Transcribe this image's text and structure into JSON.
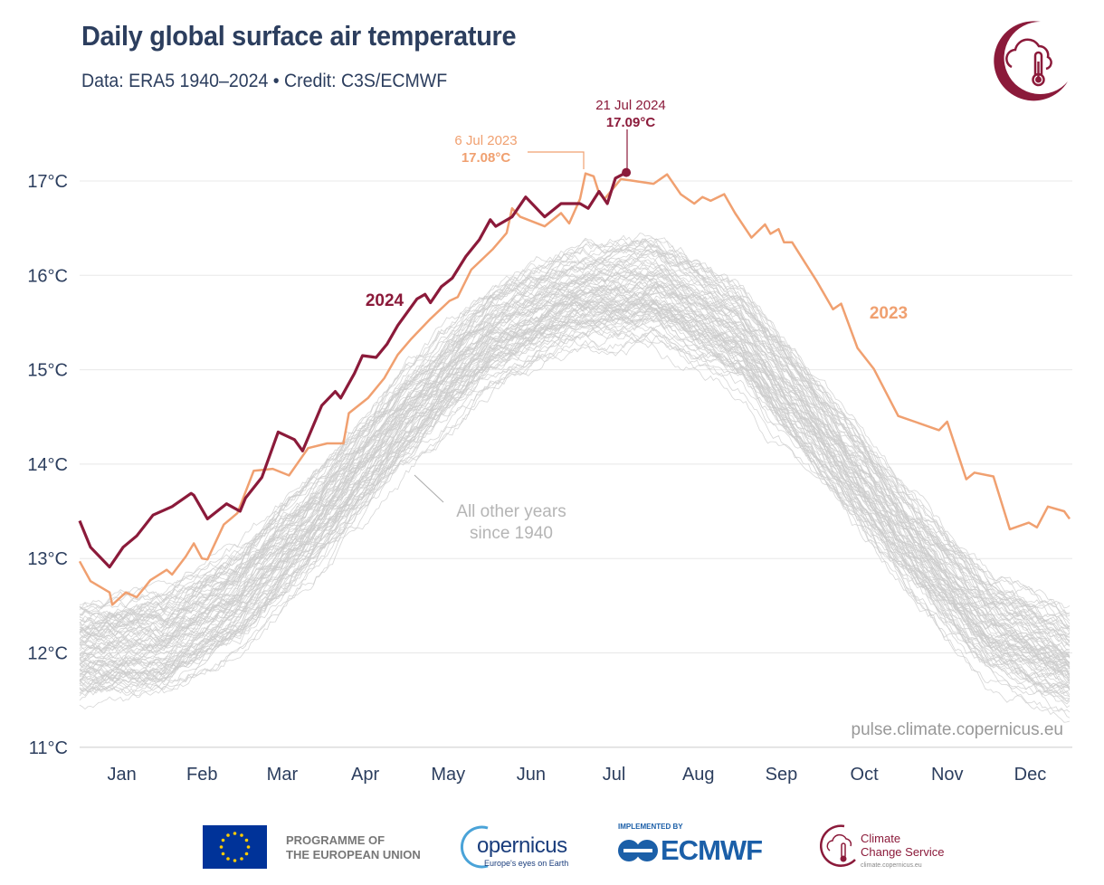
{
  "header": {
    "title": "Daily global surface air temperature",
    "subtitle": "Data: ERA5 1940–2024 • Credit: C3S/ECMWF"
  },
  "logo_icon": "climate-cloud-thermometer-icon",
  "watermark": "pulse.climate.copernicus.eu",
  "colors": {
    "y2024": "#8b1a3a",
    "y2023": "#f0a070",
    "other": "#cccccc",
    "text": "#2c3e5e",
    "grid": "#e8e8e8"
  },
  "chart_data": {
    "type": "line",
    "title": "Daily global surface air temperature",
    "xlabel": "",
    "ylabel": "",
    "x_tick_labels": [
      "Jan",
      "Feb",
      "Mar",
      "Apr",
      "May",
      "Jun",
      "Jul",
      "Aug",
      "Sep",
      "Oct",
      "Nov",
      "Dec"
    ],
    "y_tick_labels": [
      "11°C",
      "12°C",
      "13°C",
      "14°C",
      "15°C",
      "16°C",
      "17°C"
    ],
    "y_ticks": [
      11,
      12,
      13,
      14,
      15,
      16,
      17
    ],
    "ylim": [
      11,
      17.2
    ],
    "grid": true,
    "series": [
      {
        "name": "2024",
        "label": "2024",
        "points": [
          [
            "01-01",
            13.4
          ],
          [
            "01-05",
            13.12
          ],
          [
            "01-12",
            12.91
          ],
          [
            "01-17",
            13.12
          ],
          [
            "01-22",
            13.24
          ],
          [
            "01-28",
            13.46
          ],
          [
            "02-04",
            13.55
          ],
          [
            "02-11",
            13.69
          ],
          [
            "02-12",
            13.67
          ],
          [
            "02-17",
            13.42
          ],
          [
            "02-24",
            13.58
          ],
          [
            "03-01",
            13.5
          ],
          [
            "03-03",
            13.64
          ],
          [
            "03-09",
            13.86
          ],
          [
            "03-15",
            14.34
          ],
          [
            "03-21",
            14.26
          ],
          [
            "03-24",
            14.14
          ],
          [
            "03-31",
            14.62
          ],
          [
            "04-05",
            14.77
          ],
          [
            "04-07",
            14.7
          ],
          [
            "04-12",
            14.96
          ],
          [
            "04-15",
            15.15
          ],
          [
            "04-20",
            15.13
          ],
          [
            "04-24",
            15.27
          ],
          [
            "04-28",
            15.47
          ],
          [
            "05-05",
            15.75
          ],
          [
            "05-08",
            15.8
          ],
          [
            "05-10",
            15.71
          ],
          [
            "05-14",
            15.88
          ],
          [
            "05-18",
            15.97
          ],
          [
            "05-23",
            16.2
          ],
          [
            "05-28",
            16.38
          ],
          [
            "06-01",
            16.59
          ],
          [
            "06-03",
            16.52
          ],
          [
            "06-09",
            16.62
          ],
          [
            "06-14",
            16.83
          ],
          [
            "06-21",
            16.62
          ],
          [
            "06-27",
            16.76
          ],
          [
            "07-04",
            16.76
          ],
          [
            "07-07",
            16.71
          ],
          [
            "07-11",
            16.89
          ],
          [
            "07-14",
            16.76
          ],
          [
            "07-17",
            17.03
          ],
          [
            "07-21",
            17.09
          ]
        ]
      },
      {
        "name": "2023",
        "label": "2023",
        "points": [
          [
            "01-01",
            12.97
          ],
          [
            "01-05",
            12.76
          ],
          [
            "01-12",
            12.64
          ],
          [
            "01-13",
            12.51
          ],
          [
            "01-18",
            12.64
          ],
          [
            "01-22",
            12.59
          ],
          [
            "01-27",
            12.77
          ],
          [
            "02-02",
            12.88
          ],
          [
            "02-04",
            12.83
          ],
          [
            "02-09",
            13.02
          ],
          [
            "02-12",
            13.16
          ],
          [
            "02-15",
            13.0
          ],
          [
            "02-17",
            12.99
          ],
          [
            "02-23",
            13.36
          ],
          [
            "02-28",
            13.48
          ],
          [
            "03-06",
            13.93
          ],
          [
            "03-13",
            13.95
          ],
          [
            "03-19",
            13.88
          ],
          [
            "03-26",
            14.17
          ],
          [
            "04-02",
            14.22
          ],
          [
            "04-08",
            14.22
          ],
          [
            "04-10",
            14.54
          ],
          [
            "04-17",
            14.7
          ],
          [
            "04-23",
            14.91
          ],
          [
            "04-28",
            15.16
          ],
          [
            "05-03",
            15.33
          ],
          [
            "05-10",
            15.54
          ],
          [
            "05-17",
            15.73
          ],
          [
            "05-20",
            15.77
          ],
          [
            "05-25",
            16.06
          ],
          [
            "06-02",
            16.28
          ],
          [
            "06-07",
            16.45
          ],
          [
            "06-09",
            16.71
          ],
          [
            "06-12",
            16.62
          ],
          [
            "06-21",
            16.52
          ],
          [
            "06-27",
            16.66
          ],
          [
            "06-30",
            16.55
          ],
          [
            "07-04",
            16.81
          ],
          [
            "07-06",
            17.08
          ],
          [
            "07-09",
            17.05
          ],
          [
            "07-11",
            16.87
          ],
          [
            "07-13",
            16.81
          ],
          [
            "07-19",
            17.02
          ],
          [
            "07-24",
            17.0
          ],
          [
            "07-31",
            16.97
          ],
          [
            "08-05",
            17.07
          ],
          [
            "08-10",
            16.86
          ],
          [
            "08-15",
            16.76
          ],
          [
            "08-18",
            16.83
          ],
          [
            "08-21",
            16.79
          ],
          [
            "08-26",
            16.86
          ],
          [
            "08-30",
            16.66
          ],
          [
            "09-05",
            16.4
          ],
          [
            "09-10",
            16.54
          ],
          [
            "09-12",
            16.44
          ],
          [
            "09-15",
            16.49
          ],
          [
            "09-17",
            16.35
          ],
          [
            "09-20",
            16.35
          ],
          [
            "09-29",
            15.94
          ],
          [
            "10-05",
            15.64
          ],
          [
            "10-08",
            15.7
          ],
          [
            "10-14",
            15.23
          ],
          [
            "10-20",
            15.01
          ],
          [
            "10-29",
            14.51
          ],
          [
            "11-05",
            14.44
          ],
          [
            "11-13",
            14.36
          ],
          [
            "11-16",
            14.45
          ],
          [
            "11-23",
            13.84
          ],
          [
            "11-26",
            13.91
          ],
          [
            "12-03",
            13.87
          ],
          [
            "12-09",
            13.31
          ],
          [
            "12-16",
            13.38
          ],
          [
            "12-19",
            13.33
          ],
          [
            "12-23",
            13.55
          ],
          [
            "12-29",
            13.5
          ],
          [
            "12-31",
            13.42
          ]
        ]
      }
    ],
    "other_years": {
      "label_line1": "All other years",
      "label_line2": "since 1940",
      "typical": [
        [
          "01-01",
          12.0
        ],
        [
          "02-01",
          12.1
        ],
        [
          "03-01",
          12.6
        ],
        [
          "04-01",
          13.5
        ],
        [
          "05-01",
          14.5
        ],
        [
          "06-01",
          15.35
        ],
        [
          "07-01",
          15.75
        ],
        [
          "08-01",
          15.85
        ],
        [
          "09-01",
          15.35
        ],
        [
          "10-01",
          14.3
        ],
        [
          "11-01",
          13.2
        ],
        [
          "12-01",
          12.3
        ],
        [
          "12-31",
          11.9
        ]
      ],
      "spread": 0.55
    },
    "annotations": [
      {
        "date_label": "6 Jul 2023",
        "value_label": "17.08°C",
        "date": "07-06",
        "value": 17.08,
        "series": "2023"
      },
      {
        "date_label": "21 Jul 2024",
        "value_label": "17.09°C",
        "date": "07-21",
        "value": 17.09,
        "series": "2024"
      }
    ]
  },
  "footer": {
    "eu_text_line1": "PROGRAMME OF",
    "eu_text_line2": "THE EUROPEAN UNION",
    "copernicus_name": "opernicus",
    "copernicus_tagline": "Europe's eyes on Earth",
    "ecmwf_prefix": "IMPLEMENTED BY",
    "ecmwf_name": "ECMWF",
    "c3s_line1": "Climate",
    "c3s_line2": "Change Service",
    "c3s_url": "climate.copernicus.eu"
  }
}
